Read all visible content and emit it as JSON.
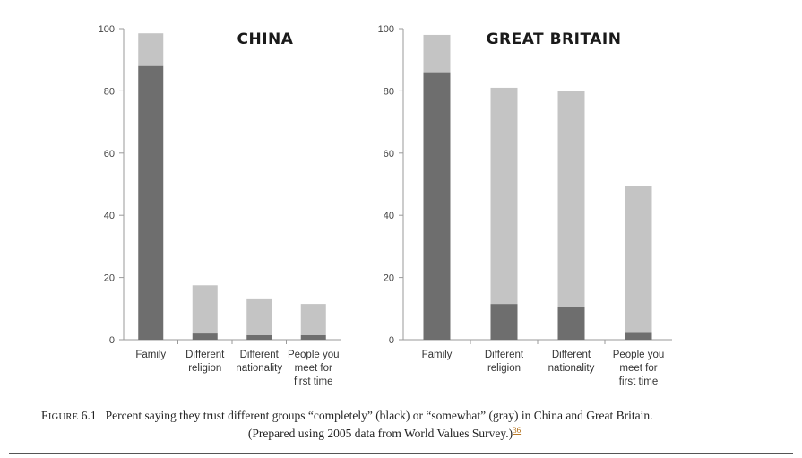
{
  "chart_data": [
    {
      "type": "bar",
      "stacked": true,
      "title": "CHINA",
      "categories": [
        "Family",
        "Different religion",
        "Different nationality",
        "People you meet for first time"
      ],
      "category_lines": [
        [
          "Family"
        ],
        [
          "Different",
          "religion"
        ],
        [
          "Different",
          "nationality"
        ],
        [
          "People you",
          "meet for",
          "first time"
        ]
      ],
      "yticks": [
        "0",
        "20",
        "40",
        "60",
        "80",
        "100"
      ],
      "ylim": [
        0,
        100
      ],
      "series": [
        {
          "values": [
            88,
            2,
            1.5,
            1.5
          ],
          "color": "#6e6e6e"
        },
        {
          "values": [
            10.5,
            15.5,
            11.5,
            10
          ],
          "color": "#c4c4c4"
        }
      ]
    },
    {
      "type": "bar",
      "stacked": true,
      "title": "GREAT BRITAIN",
      "categories": [
        "Family",
        "Different religion",
        "Different nationality",
        "People you meet for first time"
      ],
      "category_lines": [
        [
          "Family"
        ],
        [
          "Different",
          "religion"
        ],
        [
          "Different",
          "nationality"
        ],
        [
          "People you",
          "meet for",
          "first time"
        ]
      ],
      "yticks": [
        "0",
        "20",
        "40",
        "60",
        "80",
        "100"
      ],
      "ylim": [
        0,
        100
      ],
      "series": [
        {
          "values": [
            86,
            11.5,
            10.5,
            2.5
          ],
          "color": "#6e6e6e"
        },
        {
          "values": [
            12,
            69.5,
            69.5,
            47
          ],
          "color": "#c4c4c4"
        }
      ]
    }
  ],
  "caption": {
    "label": "Figure 6.1",
    "line1": "Percent saying they trust different groups “completely” (black) or “somewhat” (gray) in China and Great Britain.",
    "line2": "(Prepared using 2005 data from World Values Survey.)",
    "ref": "36"
  }
}
